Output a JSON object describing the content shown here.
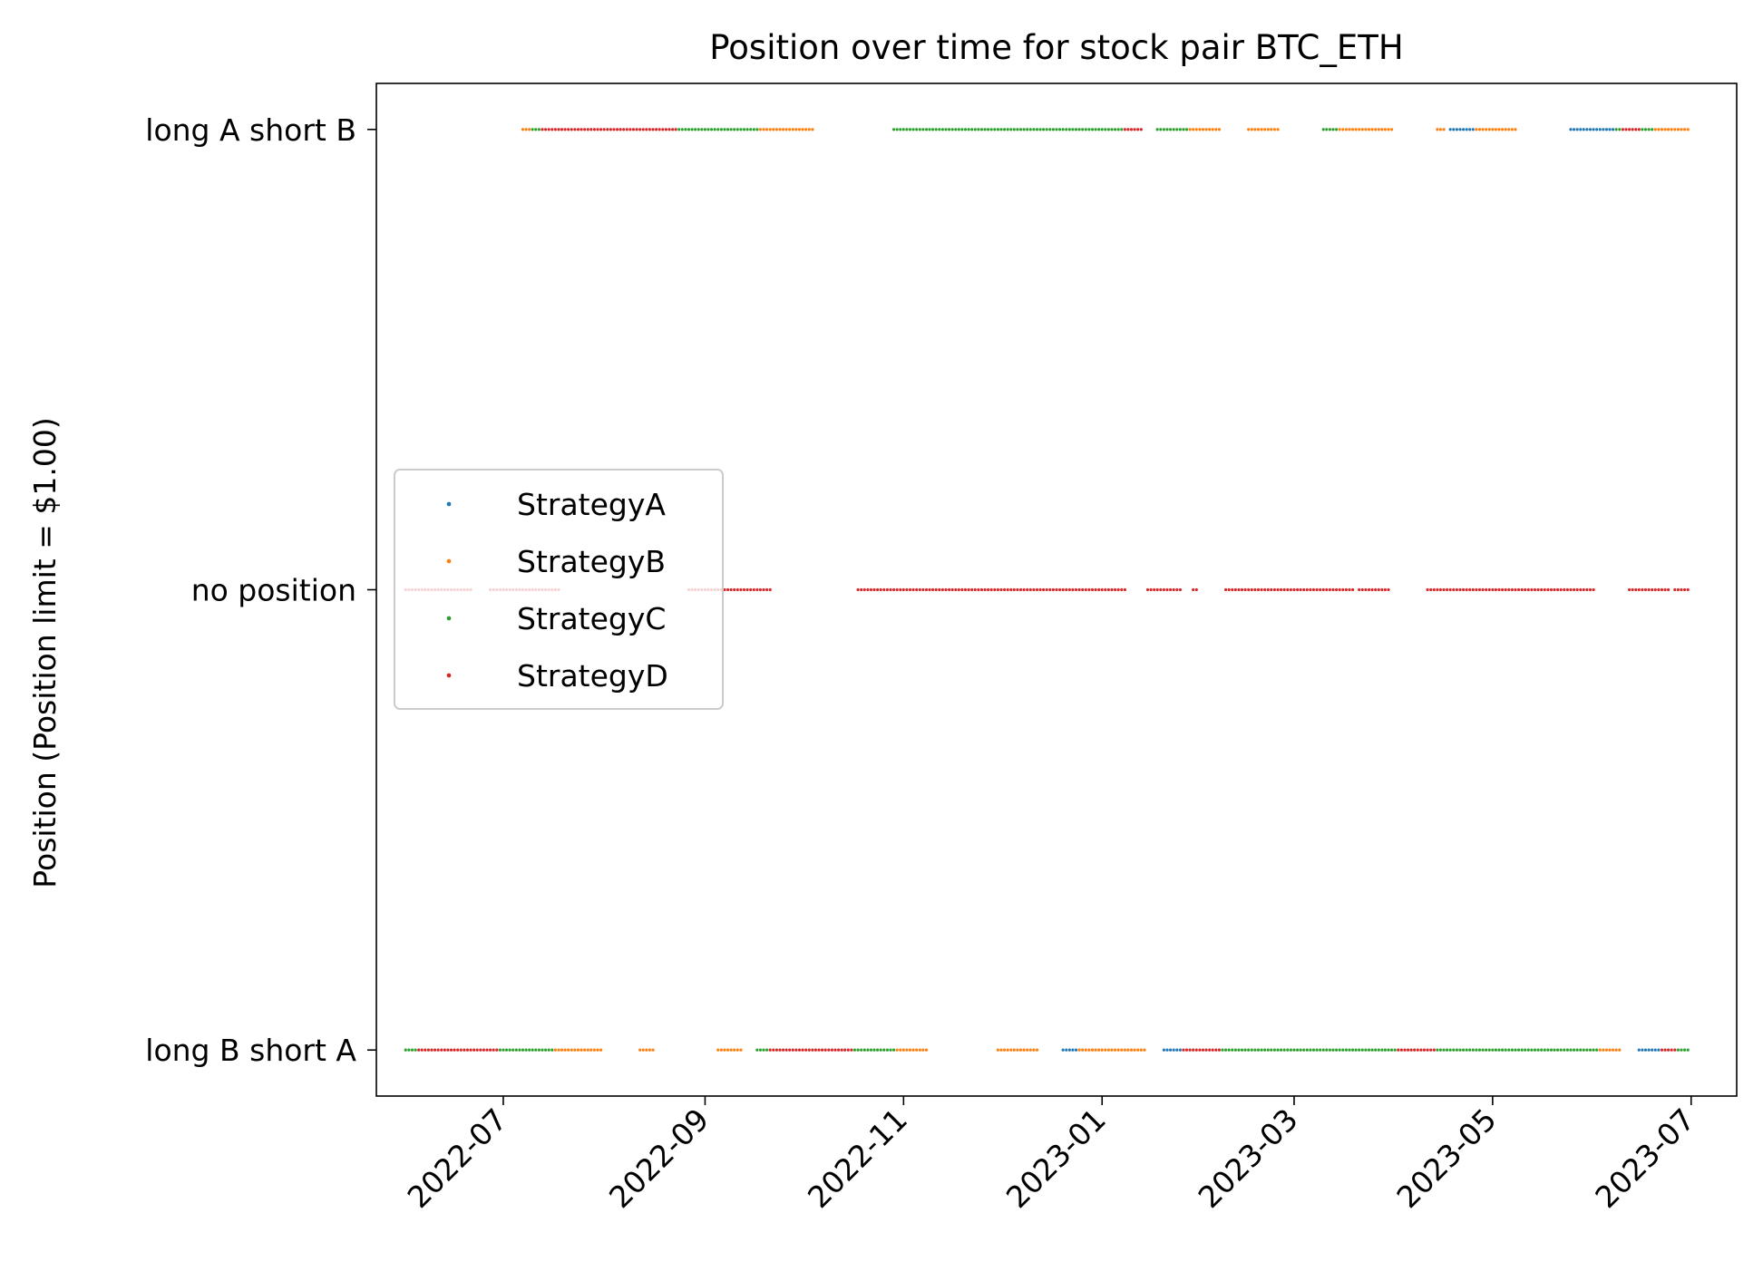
{
  "chart_data": {
    "type": "scatter",
    "title": "Position over time for stock pair BTC_ETH",
    "xlabel": "",
    "ylabel": "Position (Position limit = $1.00)",
    "x_axis": {
      "kind": "date",
      "range": [
        "2022-05-23",
        "2023-07-15"
      ],
      "ticks": [
        "2022-07-01",
        "2022-09-01",
        "2022-11-01",
        "2023-01-01",
        "2023-03-01",
        "2023-05-01",
        "2023-07-01"
      ],
      "tick_labels": [
        "2022-07",
        "2022-09",
        "2022-11",
        "2023-01",
        "2023-03",
        "2023-05",
        "2023-07"
      ]
    },
    "y_axis": {
      "range": [
        -1.1,
        1.1
      ],
      "ticks": [
        -1,
        0,
        1
      ],
      "tick_labels": [
        "long B short A",
        "no position",
        "long A short B"
      ]
    },
    "grid": false,
    "legend": {
      "placement": "center-left"
    },
    "series": [
      {
        "name": "StrategyA",
        "color": "#1f77b4",
        "segments": [
          {
            "y": -1,
            "start": "2022-06-01",
            "end": "2022-06-05"
          },
          {
            "y": -1,
            "start": "2022-12-20",
            "end": "2022-12-30"
          },
          {
            "y": -1,
            "start": "2023-01-20",
            "end": "2023-01-30"
          },
          {
            "y": -1,
            "start": "2023-06-15",
            "end": "2023-06-30"
          },
          {
            "y": 1,
            "start": "2023-04-18",
            "end": "2023-04-26"
          },
          {
            "y": 1,
            "start": "2023-05-25",
            "end": "2023-06-08"
          }
        ]
      },
      {
        "name": "StrategyB",
        "color": "#ff7f0e",
        "segments": [
          {
            "y": -1,
            "start": "2022-07-16",
            "end": "2022-07-31"
          },
          {
            "y": -1,
            "start": "2022-08-12",
            "end": "2022-08-16"
          },
          {
            "y": -1,
            "start": "2022-09-05",
            "end": "2022-09-12"
          },
          {
            "y": -1,
            "start": "2022-10-29",
            "end": "2022-11-08"
          },
          {
            "y": -1,
            "start": "2022-11-30",
            "end": "2022-12-12"
          },
          {
            "y": -1,
            "start": "2022-12-25",
            "end": "2023-01-14"
          },
          {
            "y": -1,
            "start": "2023-06-02",
            "end": "2023-06-09"
          },
          {
            "y": -1,
            "start": "2023-03-11",
            "end": "2023-03-13"
          },
          {
            "y": 1,
            "start": "2022-07-07",
            "end": "2022-07-09"
          },
          {
            "y": 1,
            "start": "2022-09-17",
            "end": "2022-10-04"
          },
          {
            "y": 1,
            "start": "2023-01-27",
            "end": "2023-02-06"
          },
          {
            "y": 1,
            "start": "2023-02-15",
            "end": "2023-02-24"
          },
          {
            "y": 1,
            "start": "2023-03-14",
            "end": "2023-03-31"
          },
          {
            "y": 1,
            "start": "2023-04-14",
            "end": "2023-04-16"
          },
          {
            "y": 1,
            "start": "2023-04-26",
            "end": "2023-05-08"
          },
          {
            "y": 1,
            "start": "2023-06-19",
            "end": "2023-06-30"
          }
        ]
      },
      {
        "name": "StrategyC",
        "color": "#2ca02c",
        "segments": [
          {
            "y": -1,
            "start": "2022-06-01",
            "end": "2022-06-04"
          },
          {
            "y": -1,
            "start": "2022-06-29",
            "end": "2022-07-16"
          },
          {
            "y": -1,
            "start": "2022-09-17",
            "end": "2022-09-21"
          },
          {
            "y": -1,
            "start": "2022-10-16",
            "end": "2022-10-29"
          },
          {
            "y": -1,
            "start": "2023-02-06",
            "end": "2023-04-02"
          },
          {
            "y": -1,
            "start": "2023-04-13",
            "end": "2023-06-02"
          },
          {
            "y": -1,
            "start": "2023-06-26",
            "end": "2023-06-30"
          },
          {
            "y": 1,
            "start": "2022-07-10",
            "end": "2022-07-13"
          },
          {
            "y": 1,
            "start": "2022-08-23",
            "end": "2022-09-17"
          },
          {
            "y": 1,
            "start": "2022-10-29",
            "end": "2023-01-08"
          },
          {
            "y": 1,
            "start": "2023-01-18",
            "end": "2023-01-27"
          },
          {
            "y": 1,
            "start": "2023-03-10",
            "end": "2023-03-14"
          },
          {
            "y": 1,
            "start": "2023-06-08",
            "end": "2023-06-19"
          }
        ]
      },
      {
        "name": "StrategyD",
        "color": "#d62728",
        "segments": [
          {
            "y": -1,
            "start": "2022-06-05",
            "end": "2022-06-29"
          },
          {
            "y": -1,
            "start": "2022-09-21",
            "end": "2022-10-16"
          },
          {
            "y": -1,
            "start": "2023-01-26",
            "end": "2023-02-06"
          },
          {
            "y": -1,
            "start": "2023-04-02",
            "end": "2023-04-13"
          },
          {
            "y": -1,
            "start": "2023-06-22",
            "end": "2023-06-26"
          },
          {
            "y": 0,
            "start": "2022-06-01",
            "end": "2022-06-21"
          },
          {
            "y": 0,
            "start": "2022-06-27",
            "end": "2022-07-18"
          },
          {
            "y": 0,
            "start": "2022-08-27",
            "end": "2022-09-21"
          },
          {
            "y": 0,
            "start": "2022-10-18",
            "end": "2023-01-08"
          },
          {
            "y": 0,
            "start": "2023-01-15",
            "end": "2023-01-25"
          },
          {
            "y": 0,
            "start": "2023-01-29",
            "end": "2023-01-30"
          },
          {
            "y": 0,
            "start": "2023-02-08",
            "end": "2023-03-19"
          },
          {
            "y": 0,
            "start": "2023-03-21",
            "end": "2023-03-30"
          },
          {
            "y": 0,
            "start": "2023-04-11",
            "end": "2023-06-01"
          },
          {
            "y": 0,
            "start": "2023-06-12",
            "end": "2023-06-24"
          },
          {
            "y": 0,
            "start": "2023-06-26",
            "end": "2023-06-30"
          },
          {
            "y": 1,
            "start": "2022-07-13",
            "end": "2022-08-23"
          },
          {
            "y": 1,
            "start": "2023-01-08",
            "end": "2023-01-13"
          },
          {
            "y": 1,
            "start": "2023-06-10",
            "end": "2023-06-15"
          }
        ]
      }
    ]
  }
}
